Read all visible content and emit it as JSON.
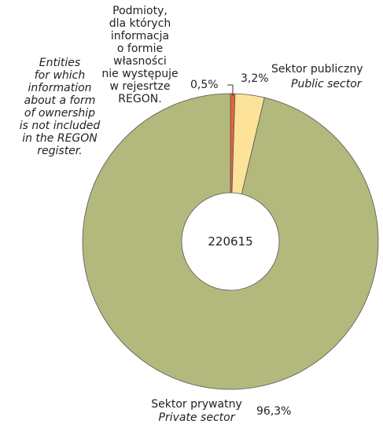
{
  "chart_data": {
    "type": "donut",
    "total": 220615,
    "categories": [
      "Podmioty,\ndla których\ninformacja\no formie\nwłasności\nnie występuje\nw rejesrtze\nREGON.",
      "Sektor publiczny",
      "Sektor prywatny"
    ],
    "categories_en": [
      "Entities\nfor which\ninformation\nabout a form\nof ownership\nis not included\nin the REGON\nregister.",
      "Public sector",
      "Private sector"
    ],
    "values": [
      0.5,
      3.2,
      96.3
    ],
    "value_labels": [
      "0,5%",
      "3,2%",
      "96,3%"
    ],
    "colors": [
      "#e8633a",
      "#fde29a",
      "#b3b87d"
    ]
  }
}
